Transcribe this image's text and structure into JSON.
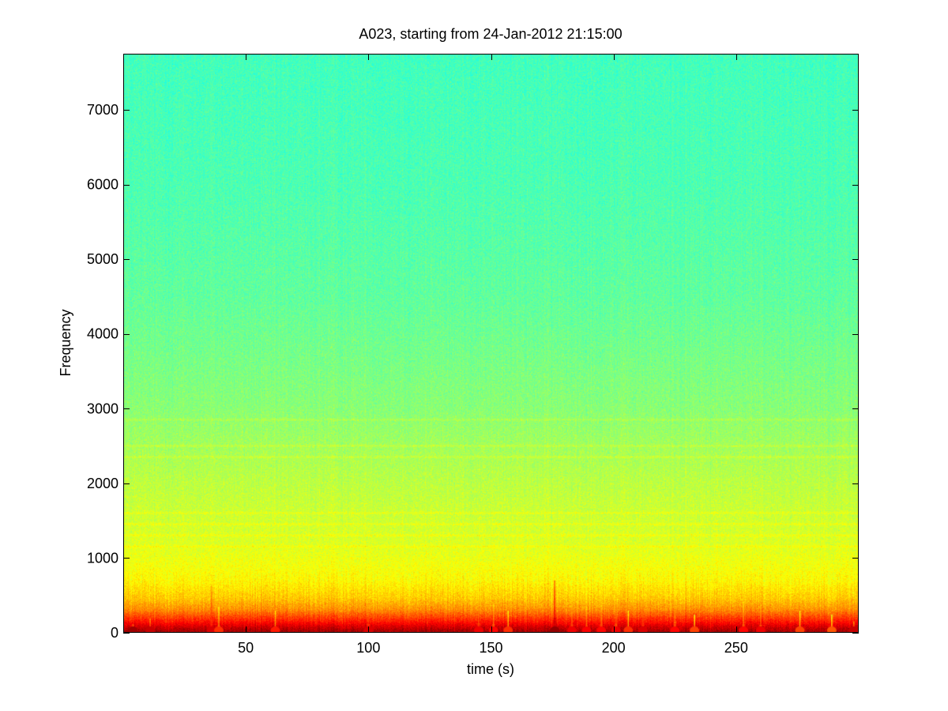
{
  "chart_data": {
    "type": "heatmap",
    "title": "A023, starting from 24-Jan-2012 21:15:00",
    "xlabel": "time (s)",
    "ylabel": "Frequency",
    "xlim": [
      0,
      300
    ],
    "ylim": [
      0,
      7750
    ],
    "xticks": [
      50,
      100,
      150,
      200,
      250
    ],
    "yticks": [
      0,
      1000,
      2000,
      3000,
      4000,
      5000,
      6000,
      7000
    ],
    "colormap": "jet",
    "grid": false,
    "legend": "none",
    "intensity_profile": [
      {
        "frequency": 0,
        "level": 0.97
      },
      {
        "frequency": 60,
        "level": 0.93
      },
      {
        "frequency": 150,
        "level": 0.85
      },
      {
        "frequency": 300,
        "level": 0.74
      },
      {
        "frequency": 450,
        "level": 0.68
      },
      {
        "frequency": 700,
        "level": 0.63
      },
      {
        "frequency": 1200,
        "level": 0.59
      },
      {
        "frequency": 2000,
        "level": 0.56
      },
      {
        "frequency": 3000,
        "level": 0.51
      },
      {
        "frequency": 4500,
        "level": 0.47
      },
      {
        "frequency": 6000,
        "level": 0.45
      },
      {
        "frequency": 7750,
        "level": 0.44
      }
    ],
    "harmonic_bands": [
      1150,
      1300,
      1450,
      1600,
      2350,
      2500,
      2850
    ],
    "transients": [
      {
        "time": 4,
        "level": 0.94,
        "top_frequency": 120
      },
      {
        "time": 11,
        "level": 0.9,
        "top_frequency": 200
      },
      {
        "time": 36,
        "level": 0.88,
        "top_frequency": 650
      },
      {
        "time": 39,
        "level": 0.8,
        "top_frequency": 350
      },
      {
        "time": 62,
        "level": 0.82,
        "top_frequency": 300
      },
      {
        "time": 100,
        "level": 0.88,
        "top_frequency": 400
      },
      {
        "time": 145,
        "level": 0.86,
        "top_frequency": 450
      },
      {
        "time": 151,
        "level": 0.84,
        "top_frequency": 400
      },
      {
        "time": 157,
        "level": 0.8,
        "top_frequency": 300
      },
      {
        "time": 176,
        "level": 0.95,
        "top_frequency": 700
      },
      {
        "time": 183,
        "level": 0.86,
        "top_frequency": 400
      },
      {
        "time": 189,
        "level": 0.85,
        "top_frequency": 350
      },
      {
        "time": 195,
        "level": 0.84,
        "top_frequency": 420
      },
      {
        "time": 201,
        "level": 0.86,
        "top_frequency": 480
      },
      {
        "time": 206,
        "level": 0.8,
        "top_frequency": 300
      },
      {
        "time": 212,
        "level": 0.88,
        "top_frequency": 450
      },
      {
        "time": 225,
        "level": 0.84,
        "top_frequency": 500
      },
      {
        "time": 233,
        "level": 0.78,
        "top_frequency": 250
      },
      {
        "time": 253,
        "level": 0.84,
        "top_frequency": 420
      },
      {
        "time": 260,
        "level": 0.86,
        "top_frequency": 380
      },
      {
        "time": 276,
        "level": 0.78,
        "top_frequency": 300
      },
      {
        "time": 289,
        "level": 0.76,
        "top_frequency": 250
      },
      {
        "time": 298,
        "level": 0.9,
        "top_frequency": 150
      }
    ]
  }
}
